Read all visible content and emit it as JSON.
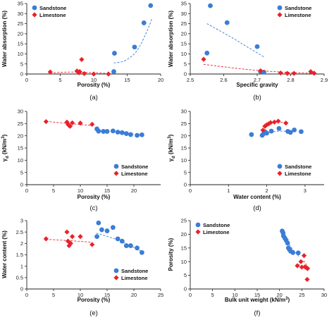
{
  "colors": {
    "sandstone": "#3a7dd6",
    "limestone": "#e8222b",
    "axis": "#222222"
  },
  "chart_data": [
    {
      "panel": "(a)",
      "type": "scatter",
      "xlabel": "Porosity (%)",
      "ylabel": "Water absorption (%)",
      "xlim": [
        0,
        20
      ],
      "ylim": [
        0,
        35
      ],
      "xticks": [
        0,
        5,
        10,
        15,
        20
      ],
      "yticks": [
        0,
        5,
        10,
        15,
        20,
        25,
        30,
        35
      ],
      "xtick_labels": [
        "0",
        "5",
        "10",
        "15",
        "20"
      ],
      "ytick_labels": [
        "0",
        "5",
        "10",
        "15",
        "20",
        "25",
        "30",
        "35"
      ],
      "legend": "top-left",
      "series": [
        {
          "name": "Sandstone",
          "marker": "circle",
          "color": "#3a7dd6",
          "points": [
            [
              13.1,
              10.3
            ],
            [
              13.0,
              1.2
            ],
            [
              16.1,
              13.4
            ],
            [
              17.5,
              25.4
            ],
            [
              18.5,
              34.0
            ]
          ],
          "trend": [
            [
              13.0,
              5.5
            ],
            [
              14.5,
              6.4
            ],
            [
              16.0,
              9.8
            ],
            [
              17.0,
              14.6
            ],
            [
              18.0,
              21.6
            ],
            [
              18.7,
              27.5
            ]
          ]
        },
        {
          "name": "Limestone",
          "marker": "diamond",
          "color": "#e8222b",
          "points": [
            [
              3.5,
              1.0
            ],
            [
              7.5,
              1.5
            ],
            [
              7.8,
              0.6
            ],
            [
              7.9,
              1.2
            ],
            [
              8.2,
              7.2
            ],
            [
              8.6,
              0.2
            ],
            [
              10.0,
              0.0
            ],
            [
              12.2,
              0.0
            ]
          ],
          "trend": [
            [
              3.5,
              0.6
            ],
            [
              7.0,
              1.0
            ],
            [
              10.0,
              0.6
            ],
            [
              12.2,
              0.3
            ]
          ]
        }
      ]
    },
    {
      "panel": "(b)",
      "type": "scatter",
      "xlabel": "Specific gravity",
      "ylabel": "Water absorption (%)",
      "xlim": [
        2.5,
        2.9
      ],
      "ylim": [
        0,
        35
      ],
      "xticks": [
        2.5,
        2.6,
        2.7,
        2.8,
        2.9
      ],
      "yticks": [
        0,
        5,
        10,
        15,
        20,
        25,
        30,
        35
      ],
      "xtick_labels": [
        "2.5",
        "2.6",
        "2.7",
        "2.8",
        "2.9"
      ],
      "ytick_labels": [
        "0",
        "5",
        "10",
        "15",
        "20",
        "25",
        "30",
        "35"
      ],
      "legend": "top-right",
      "series": [
        {
          "name": "Sandstone",
          "marker": "circle",
          "color": "#3a7dd6",
          "points": [
            [
              2.55,
              10.4
            ],
            [
              2.56,
              33.9
            ],
            [
              2.61,
              25.5
            ],
            [
              2.7,
              13.6
            ],
            [
              2.71,
              1.2
            ],
            [
              2.72,
              0.9
            ]
          ],
          "trend": [
            [
              2.55,
              25.0
            ],
            [
              2.62,
              18.5
            ],
            [
              2.67,
              13.5
            ],
            [
              2.72,
              8.5
            ]
          ]
        },
        {
          "name": "Limestone",
          "marker": "diamond",
          "color": "#e8222b",
          "points": [
            [
              2.54,
              7.3
            ],
            [
              2.71,
              1.6
            ],
            [
              2.77,
              0.5
            ],
            [
              2.79,
              0.3
            ],
            [
              2.81,
              0.3
            ],
            [
              2.86,
              1.2
            ],
            [
              2.87,
              0.4
            ]
          ],
          "trend": [
            [
              2.54,
              4.8
            ],
            [
              2.65,
              2.6
            ],
            [
              2.75,
              1.2
            ],
            [
              2.87,
              0.3
            ]
          ]
        }
      ]
    },
    {
      "panel": "(c)",
      "type": "scatter",
      "xlabel": "Porosity (%)",
      "ylabel": "γd (kN/m³)",
      "xlim": [
        0,
        25
      ],
      "ylim": [
        0,
        30
      ],
      "xticks": [
        0,
        5,
        10,
        15,
        20
      ],
      "yticks": [
        0,
        5,
        10,
        15,
        20,
        25,
        30
      ],
      "xtick_labels": [
        "0",
        "5",
        "10",
        "15",
        "20"
      ],
      "ytick_labels": [
        "0",
        "5",
        "10",
        "15",
        "20",
        "25",
        "30"
      ],
      "legend": "bottom-right",
      "series": [
        {
          "name": "Sandstone",
          "marker": "circle",
          "color": "#3a7dd6",
          "points": [
            [
              13.1,
              22.8
            ],
            [
              13.4,
              21.9
            ],
            [
              14.3,
              21.8
            ],
            [
              15.0,
              21.8
            ],
            [
              16.1,
              22.0
            ],
            [
              17.0,
              21.5
            ],
            [
              17.8,
              21.3
            ],
            [
              18.6,
              20.9
            ],
            [
              19.4,
              20.5
            ],
            [
              20.6,
              20.2
            ],
            [
              21.5,
              20.4
            ]
          ],
          "trend": [
            [
              13.0,
              22.3
            ],
            [
              17.0,
              21.4
            ],
            [
              21.5,
              20.3
            ]
          ]
        },
        {
          "name": "Limestone",
          "marker": "diamond",
          "color": "#e8222b",
          "points": [
            [
              3.6,
              25.8
            ],
            [
              7.5,
              25.6
            ],
            [
              7.7,
              24.7
            ],
            [
              7.9,
              24.2
            ],
            [
              8.1,
              23.9
            ],
            [
              8.5,
              25.3
            ],
            [
              10.0,
              25.2
            ],
            [
              12.2,
              24.7
            ]
          ],
          "trend": [
            [
              3.6,
              25.9
            ],
            [
              8.0,
              25.0
            ],
            [
              12.2,
              24.2
            ]
          ]
        }
      ]
    },
    {
      "panel": "(d)",
      "type": "scatter",
      "xlabel": "Water content (%)",
      "ylabel": "γd (kN/m³)",
      "xlim": [
        0,
        3.5
      ],
      "ylim": [
        0,
        30
      ],
      "xticks": [
        0,
        1,
        2,
        3
      ],
      "yticks": [
        0,
        5,
        10,
        15,
        20,
        25,
        30
      ],
      "xtick_labels": [
        "0",
        "1",
        "2",
        "3"
      ],
      "ytick_labels": [
        "0",
        "5",
        "10",
        "15",
        "20",
        "25",
        "30"
      ],
      "legend": "bottom-right",
      "series": [
        {
          "name": "Sandstone",
          "marker": "circle",
          "color": "#3a7dd6",
          "points": [
            [
              1.6,
              20.5
            ],
            [
              1.88,
              20.2
            ],
            [
              1.92,
              20.9
            ],
            [
              1.95,
              21.7
            ],
            [
              2.0,
              21.1
            ],
            [
              2.12,
              21.9
            ],
            [
              2.32,
              23.0
            ],
            [
              2.55,
              21.8
            ],
            [
              2.62,
              21.4
            ],
            [
              2.72,
              22.4
            ],
            [
              2.9,
              21.7
            ]
          ],
          "trend": [
            [
              1.9,
              20.6
            ],
            [
              2.3,
              21.9
            ],
            [
              2.72,
              21.6
            ]
          ]
        },
        {
          "name": "Limestone",
          "marker": "diamond",
          "color": "#e8222b",
          "points": [
            [
              1.9,
              22.3
            ],
            [
              1.95,
              23.9
            ],
            [
              2.0,
              24.5
            ],
            [
              2.05,
              24.9
            ],
            [
              2.1,
              25.4
            ],
            [
              2.2,
              25.6
            ],
            [
              2.3,
              26.0
            ],
            [
              2.5,
              25.2
            ]
          ],
          "trend": [
            [
              1.88,
              22.0
            ],
            [
              2.05,
              24.4
            ],
            [
              2.25,
              25.5
            ],
            [
              2.45,
              25.5
            ],
            [
              2.55,
              24.9
            ]
          ]
        }
      ]
    },
    {
      "panel": "(e)",
      "type": "scatter",
      "xlabel": "Porosity (%)",
      "ylabel": "Water content (%)",
      "xlim": [
        0,
        25
      ],
      "ylim": [
        0,
        3
      ],
      "xticks": [
        0,
        5,
        10,
        15,
        20,
        25
      ],
      "yticks": [
        0,
        0.5,
        1,
        1.5,
        2,
        2.5,
        3
      ],
      "xtick_labels": [
        "0",
        "5",
        "10",
        "15",
        "20",
        "25"
      ],
      "ytick_labels": [
        "0",
        "0.5",
        "1",
        "1.5",
        "2",
        "2.5",
        "3"
      ],
      "legend": "bottom-right",
      "series": [
        {
          "name": "Sandstone",
          "marker": "circle",
          "color": "#3a7dd6",
          "points": [
            [
              13.1,
              2.3
            ],
            [
              13.4,
              2.9
            ],
            [
              14.0,
              2.6
            ],
            [
              15.0,
              2.55
            ],
            [
              16.1,
              2.7
            ],
            [
              17.0,
              2.2
            ],
            [
              17.8,
              2.1
            ],
            [
              18.6,
              1.9
            ],
            [
              19.4,
              1.9
            ],
            [
              20.6,
              1.8
            ],
            [
              21.5,
              1.6
            ]
          ],
          "trend": [
            [
              13.0,
              2.45
            ],
            [
              17.0,
              2.15
            ],
            [
              21.5,
              1.65
            ]
          ]
        },
        {
          "name": "Limestone",
          "marker": "diamond",
          "color": "#e8222b",
          "points": [
            [
              3.6,
              2.2
            ],
            [
              7.5,
              2.5
            ],
            [
              7.7,
              2.1
            ],
            [
              7.9,
              1.9
            ],
            [
              8.2,
              2.0
            ],
            [
              8.5,
              2.3
            ],
            [
              10.0,
              2.3
            ],
            [
              12.2,
              1.95
            ]
          ],
          "trend": [
            [
              3.6,
              2.18
            ],
            [
              8.0,
              2.12
            ],
            [
              12.2,
              2.05
            ]
          ]
        }
      ]
    },
    {
      "panel": "(f)",
      "type": "scatter",
      "xlabel": "Bulk unit weight (kN/m³)",
      "ylabel": "Porosity (%)",
      "xlim": [
        0,
        30
      ],
      "ylim": [
        0,
        25
      ],
      "xticks": [
        0,
        5,
        10,
        15,
        20,
        25,
        30
      ],
      "yticks": [
        0,
        5,
        10,
        15,
        20,
        25
      ],
      "xtick_labels": [
        "0",
        "5",
        "10",
        "15",
        "20",
        "25",
        "30"
      ],
      "ytick_labels": [
        "0",
        "5",
        "10",
        "15",
        "20",
        "25"
      ],
      "legend": "top-left",
      "series": [
        {
          "name": "Sandstone",
          "marker": "circle",
          "color": "#3a7dd6",
          "points": [
            [
              20.6,
              21.2
            ],
            [
              20.8,
              20.5
            ],
            [
              20.9,
              19.4
            ],
            [
              21.2,
              18.6
            ],
            [
              21.5,
              17.8
            ],
            [
              21.8,
              16.8
            ],
            [
              22.0,
              15.0
            ],
            [
              22.2,
              14.5
            ],
            [
              22.5,
              13.8
            ],
            [
              23.0,
              13.3
            ],
            [
              24.2,
              13.2
            ]
          ],
          "trend": [
            [
              20.5,
              20.8
            ],
            [
              22.5,
              15.5
            ],
            [
              24.3,
              12.0
            ]
          ]
        },
        {
          "name": "Limestone",
          "marker": "diamond",
          "color": "#e8222b",
          "points": [
            [
              24.0,
              8.5
            ],
            [
              24.8,
              10.0
            ],
            [
              25.5,
              12.2
            ],
            [
              25.7,
              8.1
            ],
            [
              26.0,
              7.8
            ],
            [
              26.2,
              3.5
            ],
            [
              26.3,
              7.5
            ],
            [
              25.0,
              8.0
            ]
          ],
          "trend": [
            [
              24.2,
              8.4
            ],
            [
              25.0,
              10.0
            ],
            [
              25.8,
              9.6
            ],
            [
              26.3,
              6.5
            ]
          ]
        }
      ]
    }
  ]
}
